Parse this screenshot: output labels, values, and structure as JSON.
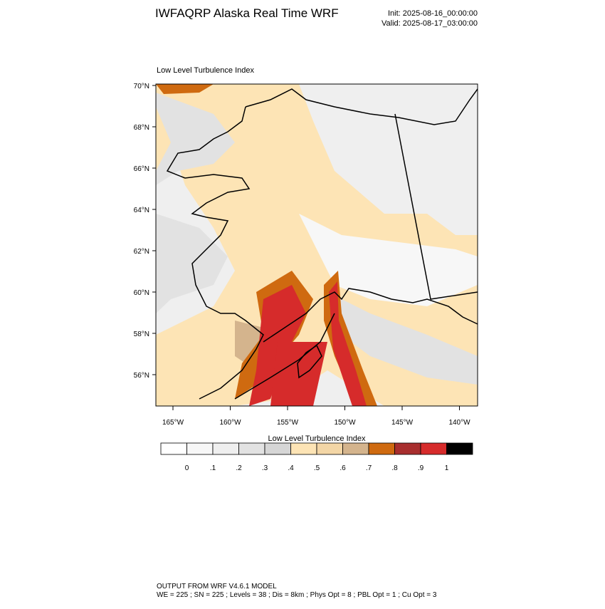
{
  "header": {
    "title": "IWFAQRP Alaska Real Time WRF",
    "init": "Init: 2025-08-16_00:00:00",
    "valid": "Valid: 2025-08-17_03:00:00"
  },
  "map": {
    "title": "Low Level Turbulence Index",
    "lat_ticks": [
      {
        "value": 70,
        "label": "70°N"
      },
      {
        "value": 68,
        "label": "68°N"
      },
      {
        "value": 66,
        "label": "66°N"
      },
      {
        "value": 64,
        "label": "64°N"
      },
      {
        "value": 62,
        "label": "62°N"
      },
      {
        "value": 60,
        "label": "60°N"
      },
      {
        "value": 58,
        "label": "58°N"
      },
      {
        "value": 56,
        "label": "56°N"
      }
    ],
    "lon_ticks": [
      {
        "value": -165,
        "label": "165°W"
      },
      {
        "value": -160,
        "label": "160°W"
      },
      {
        "value": -155,
        "label": "155°W"
      },
      {
        "value": -150,
        "label": "150°W"
      },
      {
        "value": -145,
        "label": "145°W"
      },
      {
        "value": -140,
        "label": "140°W"
      }
    ]
  },
  "colorbar": {
    "title": "Low Level Turbulence Index",
    "colors": [
      "#ffffff",
      "#f7f7f7",
      "#efefef",
      "#e2e2e2",
      "#d6d6d6",
      "#fde4b5",
      "#f3d6a6",
      "#d4b48d",
      "#cf6a10",
      "#a82e2e",
      "#d62b2b",
      "#000000"
    ],
    "levels": [
      {
        "value": 0,
        "label": "0"
      },
      {
        "value": 0.1,
        "label": ".1"
      },
      {
        "value": 0.2,
        "label": ".2"
      },
      {
        "value": 0.3,
        "label": ".3"
      },
      {
        "value": 0.4,
        "label": ".4"
      },
      {
        "value": 0.5,
        "label": ".5"
      },
      {
        "value": 0.6,
        "label": ".6"
      },
      {
        "value": 0.7,
        "label": ".7"
      },
      {
        "value": 0.8,
        "label": ".8"
      },
      {
        "value": 0.9,
        "label": ".9"
      },
      {
        "value": 1,
        "label": "1"
      }
    ]
  },
  "footer": {
    "line1": "OUTPUT FROM WRF V4.6.1 MODEL",
    "line2": "WE = 225 ; SN = 225 ; Levels = 38 ; Dis = 8km ; Phys Opt = 8 ; PBL Opt = 1 ; Cu Opt = 3"
  }
}
